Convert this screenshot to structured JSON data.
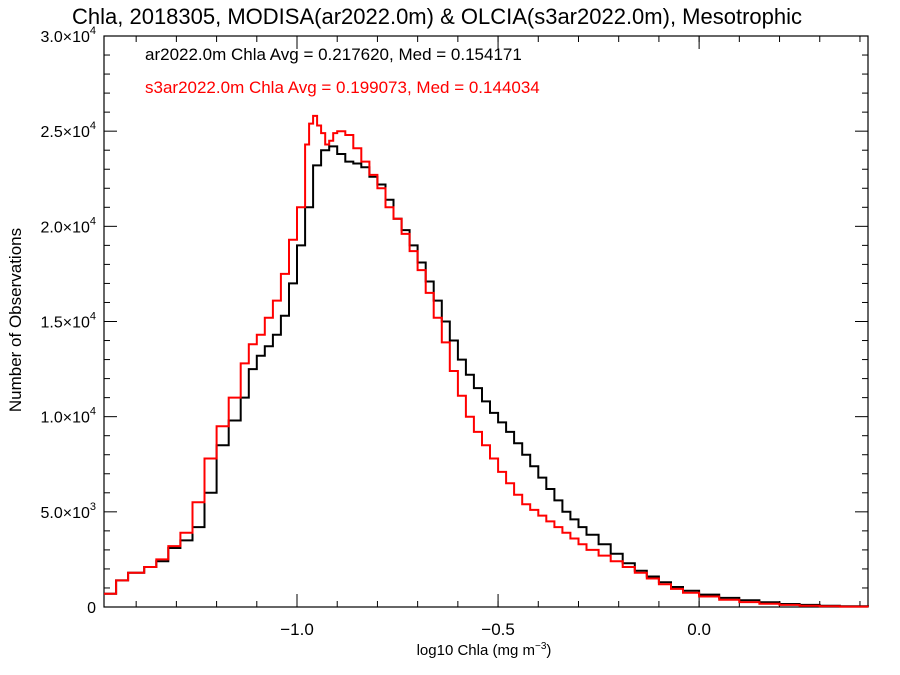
{
  "chart_data": {
    "type": "line",
    "title": "Chla, 2018305, MODISA(ar2022.0m) & OLCIA(s3ar2022.0m), Mesotrophic",
    "xlabel": "log10 Chla (mg m",
    "xlabel_sup": "−3",
    "xlabel_close": ")",
    "ylabel": "Number of Observations",
    "xlim": [
      -1.48,
      0.42
    ],
    "ylim": [
      0,
      30000
    ],
    "x_ticks": [
      {
        "value": -1.0,
        "label": "−1.0"
      },
      {
        "value": -0.5,
        "label": "−0.5"
      },
      {
        "value": 0.0,
        "label": "0.0"
      }
    ],
    "y_ticks": [
      {
        "value": 0,
        "mant": "0",
        "exp": ""
      },
      {
        "value": 5000,
        "mant": "5.0×10",
        "exp": "3"
      },
      {
        "value": 10000,
        "mant": "1.0×10",
        "exp": "4"
      },
      {
        "value": 15000,
        "mant": "1.5×10",
        "exp": "4"
      },
      {
        "value": 20000,
        "mant": "2.0×10",
        "exp": "4"
      },
      {
        "value": 25000,
        "mant": "2.5×10",
        "exp": "4"
      },
      {
        "value": 30000,
        "mant": "3.0×10",
        "exp": "4"
      }
    ],
    "annotations": [
      {
        "text": "ar2022.0m Chla Avg = 0.217620, Med = 0.154171",
        "color": "#000000"
      },
      {
        "text": "s3ar2022.0m Chla Avg = 0.199073, Med = 0.144034",
        "color": "#ff0000"
      }
    ],
    "series": [
      {
        "color": "#000000",
        "x": [
          -1.48,
          -1.45,
          -1.42,
          -1.38,
          -1.35,
          -1.32,
          -1.29,
          -1.26,
          -1.23,
          -1.2,
          -1.17,
          -1.14,
          -1.12,
          -1.1,
          -1.08,
          -1.06,
          -1.04,
          -1.02,
          -1.0,
          -0.98,
          -0.96,
          -0.94,
          -0.92,
          -0.9,
          -0.88,
          -0.86,
          -0.84,
          -0.82,
          -0.8,
          -0.78,
          -0.76,
          -0.74,
          -0.72,
          -0.7,
          -0.68,
          -0.66,
          -0.64,
          -0.62,
          -0.6,
          -0.58,
          -0.56,
          -0.54,
          -0.52,
          -0.5,
          -0.48,
          -0.46,
          -0.44,
          -0.42,
          -0.4,
          -0.38,
          -0.36,
          -0.34,
          -0.32,
          -0.3,
          -0.28,
          -0.25,
          -0.22,
          -0.19,
          -0.16,
          -0.13,
          -0.1,
          -0.07,
          -0.04,
          0.0,
          0.05,
          0.1,
          0.15,
          0.2,
          0.25,
          0.3,
          0.35,
          0.42
        ],
        "y": [
          700,
          1400,
          1800,
          2100,
          2400,
          3100,
          3500,
          4200,
          6000,
          8500,
          9800,
          11000,
          12500,
          13200,
          13700,
          14300,
          15300,
          17000,
          19000,
          21000,
          23200,
          24000,
          24200,
          23800,
          23400,
          23300,
          23100,
          22600,
          22200,
          21400,
          20400,
          19800,
          19000,
          18100,
          17100,
          16100,
          15000,
          14000,
          13000,
          12200,
          11500,
          10800,
          10200,
          9700,
          9200,
          8600,
          8000,
          7400,
          6800,
          6200,
          5600,
          5000,
          4600,
          4200,
          3800,
          3300,
          2800,
          2300,
          1900,
          1600,
          1300,
          1050,
          850,
          650,
          480,
          350,
          250,
          160,
          110,
          70,
          40,
          20
        ]
      },
      {
        "color": "#ff0000",
        "x": [
          -1.48,
          -1.45,
          -1.42,
          -1.38,
          -1.35,
          -1.32,
          -1.29,
          -1.26,
          -1.23,
          -1.2,
          -1.17,
          -1.14,
          -1.12,
          -1.1,
          -1.08,
          -1.06,
          -1.04,
          -1.02,
          -1.0,
          -0.98,
          -0.97,
          -0.96,
          -0.95,
          -0.94,
          -0.93,
          -0.92,
          -0.91,
          -0.9,
          -0.88,
          -0.86,
          -0.84,
          -0.82,
          -0.8,
          -0.78,
          -0.76,
          -0.74,
          -0.72,
          -0.7,
          -0.68,
          -0.66,
          -0.64,
          -0.62,
          -0.6,
          -0.58,
          -0.56,
          -0.54,
          -0.52,
          -0.5,
          -0.48,
          -0.46,
          -0.44,
          -0.42,
          -0.4,
          -0.38,
          -0.36,
          -0.34,
          -0.32,
          -0.3,
          -0.28,
          -0.25,
          -0.22,
          -0.19,
          -0.16,
          -0.13,
          -0.1,
          -0.07,
          -0.04,
          0.0,
          0.05,
          0.1,
          0.15,
          0.2,
          0.25,
          0.3,
          0.35,
          0.42
        ],
        "y": [
          700,
          1400,
          1800,
          2100,
          2500,
          3200,
          3900,
          5500,
          7800,
          9500,
          11000,
          12800,
          13800,
          14300,
          15200,
          16100,
          17500,
          19300,
          21000,
          24300,
          25400,
          25800,
          25300,
          24900,
          24300,
          24500,
          24900,
          25000,
          24800,
          24100,
          23400,
          22700,
          22000,
          21000,
          20400,
          19600,
          18700,
          17700,
          16500,
          15200,
          13900,
          12400,
          11100,
          10000,
          9200,
          8500,
          7800,
          7100,
          6500,
          5900,
          5400,
          5100,
          4800,
          4500,
          4200,
          3900,
          3600,
          3300,
          3000,
          2700,
          2400,
          2100,
          1800,
          1500,
          1200,
          950,
          750,
          550,
          380,
          260,
          170,
          110,
          70,
          40,
          20,
          10
        ]
      }
    ]
  }
}
